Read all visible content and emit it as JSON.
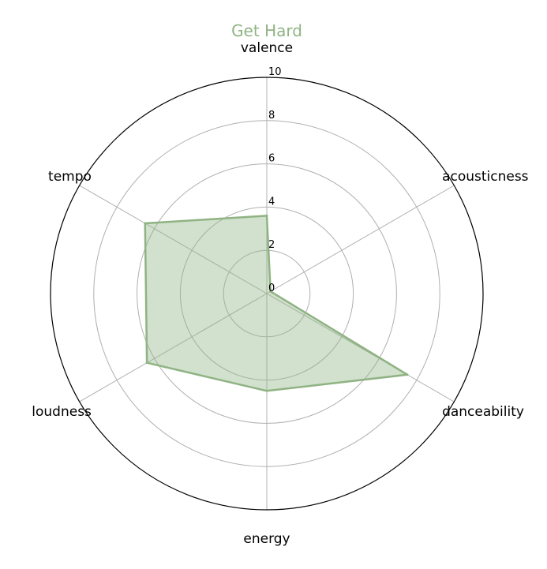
{
  "chart_data": {
    "type": "radar",
    "title": "Get Hard",
    "axes": [
      "valence",
      "acousticness",
      "danceability",
      "energy",
      "loudness",
      "tempo"
    ],
    "series": [
      {
        "values": [
          3.6,
          0.2,
          7.5,
          4.5,
          6.4,
          6.5
        ]
      }
    ],
    "rlim": [
      0,
      10
    ],
    "rticks": [
      "0",
      "2",
      "4",
      "6",
      "8",
      "10"
    ],
    "grid": true,
    "colors": {
      "series": "#8fb383",
      "title": "#8fb383",
      "grid": "#b0b0b0",
      "outer": "#000000"
    }
  }
}
